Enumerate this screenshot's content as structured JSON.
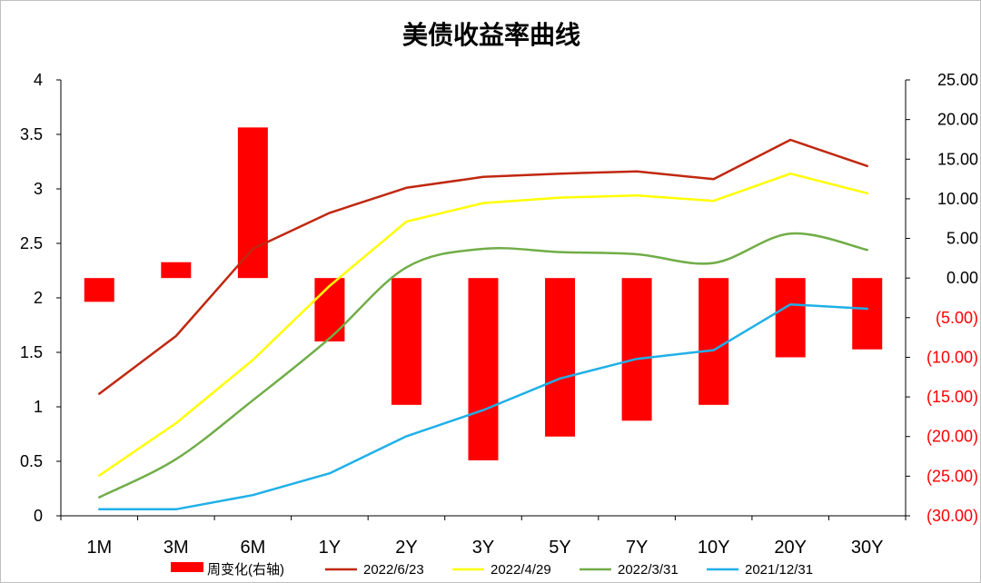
{
  "chart_data": {
    "type": "bar+line",
    "title": "美债收益率曲线",
    "categories": [
      "1M",
      "3M",
      "6M",
      "1Y",
      "2Y",
      "3Y",
      "5Y",
      "7Y",
      "10Y",
      "20Y",
      "30Y"
    ],
    "left_axis": {
      "range": [
        0,
        4
      ],
      "ticks": [
        {
          "value": 0,
          "label": "0"
        },
        {
          "value": 0.5,
          "label": "0.5"
        },
        {
          "value": 1,
          "label": "1"
        },
        {
          "value": 1.5,
          "label": "1.5"
        },
        {
          "value": 2,
          "label": "2"
        },
        {
          "value": 2.5,
          "label": "2.5"
        },
        {
          "value": 3,
          "label": "3"
        },
        {
          "value": 3.5,
          "label": "3.5"
        },
        {
          "value": 4,
          "label": "4"
        }
      ]
    },
    "right_axis": {
      "range": [
        -30,
        25
      ],
      "ticks": [
        {
          "value": 25,
          "label": "25.00",
          "color": "#000000"
        },
        {
          "value": 20,
          "label": "20.00",
          "color": "#000000"
        },
        {
          "value": 15,
          "label": "15.00",
          "color": "#000000"
        },
        {
          "value": 10,
          "label": "10.00",
          "color": "#000000"
        },
        {
          "value": 5,
          "label": "5.00",
          "color": "#000000"
        },
        {
          "value": 0,
          "label": "0.00",
          "color": "#000000"
        },
        {
          "value": -5,
          "label": "(5.00)",
          "color": "#ff0000"
        },
        {
          "value": -10,
          "label": "(10.00)",
          "color": "#ff0000"
        },
        {
          "value": -15,
          "label": "(15.00)",
          "color": "#ff0000"
        },
        {
          "value": -20,
          "label": "(20.00)",
          "color": "#ff0000"
        },
        {
          "value": -25,
          "label": "(25.00)",
          "color": "#ff0000"
        },
        {
          "value": -30,
          "label": "(30.00)",
          "color": "#ff0000"
        }
      ]
    },
    "bar_series": {
      "name": "周变化(右轴)",
      "color": "#ff0000",
      "axis": "right",
      "values": [
        -3,
        2,
        19,
        -8,
        -16,
        -23,
        -20,
        -18,
        -16,
        -10,
        -9
      ]
    },
    "line_series": [
      {
        "name": "2022/6/23",
        "color": "#c0280f",
        "smooth": false,
        "values": [
          1.12,
          1.65,
          2.45,
          2.78,
          3.01,
          3.11,
          3.14,
          3.16,
          3.09,
          3.45,
          3.21
        ]
      },
      {
        "name": "2022/4/29",
        "color": "#ffff00",
        "smooth": false,
        "values": [
          0.37,
          0.85,
          1.43,
          2.11,
          2.7,
          2.87,
          2.92,
          2.94,
          2.89,
          3.14,
          2.96
        ]
      },
      {
        "name": "2022/3/31",
        "color": "#70ad47",
        "smooth": true,
        "values": [
          0.17,
          0.52,
          1.06,
          1.63,
          2.28,
          2.45,
          2.42,
          2.4,
          2.32,
          2.59,
          2.44
        ]
      },
      {
        "name": "2021/12/31",
        "color": "#1fb0e8",
        "smooth": false,
        "values": [
          0.06,
          0.06,
          0.19,
          0.39,
          0.73,
          0.97,
          1.26,
          1.44,
          1.52,
          1.94,
          1.9
        ]
      }
    ],
    "legend": {
      "position": "bottom"
    },
    "grid": false
  }
}
